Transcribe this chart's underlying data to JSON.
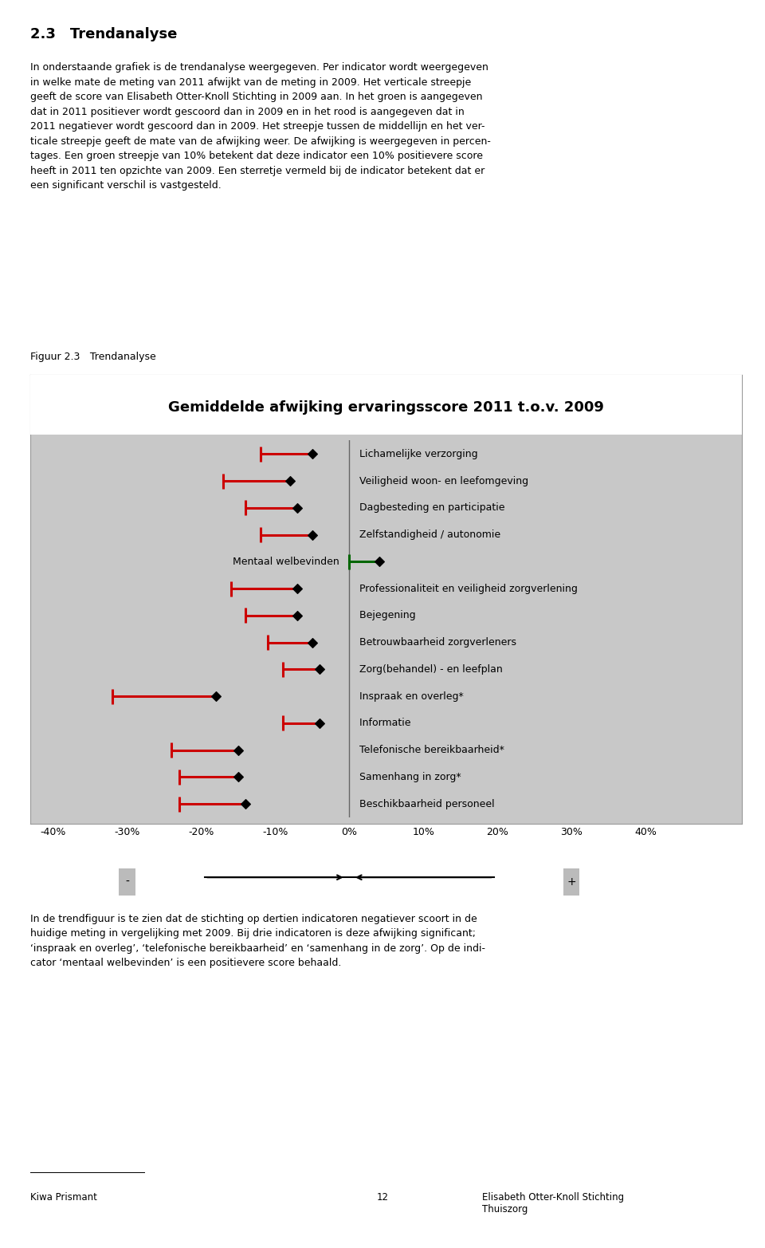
{
  "title": "Gemiddelde afwijking ervaringsscore 2011 t.o.v. 2009",
  "indicators": [
    {
      "label": "Lichamelijke verzorging",
      "value": -0.05,
      "ci_low": -0.12,
      "color": "red",
      "label_side": "right"
    },
    {
      "label": "Veiligheid woon- en leefomgeving",
      "value": -0.08,
      "ci_low": -0.17,
      "color": "red",
      "label_side": "right"
    },
    {
      "label": "Dagbesteding en participatie",
      "value": -0.07,
      "ci_low": -0.14,
      "color": "red",
      "label_side": "right"
    },
    {
      "label": "Zelfstandigheid / autonomie",
      "value": -0.05,
      "ci_low": -0.12,
      "color": "red",
      "label_side": "right"
    },
    {
      "label": "Mentaal welbevinden",
      "value": 0.04,
      "ci_low": 0.0,
      "color": "green",
      "label_side": "left"
    },
    {
      "label": "Professionaliteit en veiligheid zorgverlening",
      "value": -0.07,
      "ci_low": -0.16,
      "color": "red",
      "label_side": "right"
    },
    {
      "label": "Bejegening",
      "value": -0.07,
      "ci_low": -0.14,
      "color": "red",
      "label_side": "right"
    },
    {
      "label": "Betrouwbaarheid zorgverleners",
      "value": -0.05,
      "ci_low": -0.11,
      "color": "red",
      "label_side": "right"
    },
    {
      "label": "Zorg(behandel) - en leefplan",
      "value": -0.04,
      "ci_low": -0.09,
      "color": "red",
      "label_side": "right"
    },
    {
      "label": "Inspraak en overleg*",
      "value": -0.18,
      "ci_low": -0.32,
      "color": "red",
      "label_side": "right"
    },
    {
      "label": "Informatie",
      "value": -0.04,
      "ci_low": -0.09,
      "color": "red",
      "label_side": "right"
    },
    {
      "label": "Telefonische bereikbaarheid*",
      "value": -0.15,
      "ci_low": -0.24,
      "color": "red",
      "label_side": "right"
    },
    {
      "label": "Samenhang in zorg*",
      "value": -0.15,
      "ci_low": -0.23,
      "color": "red",
      "label_side": "right"
    },
    {
      "label": "Beschikbaarheid personeel",
      "value": -0.14,
      "ci_low": -0.23,
      "color": "red",
      "label_side": "right"
    }
  ],
  "xlim": [
    -0.42,
    0.52
  ],
  "xticks": [
    -0.4,
    -0.3,
    -0.2,
    -0.1,
    0.0,
    0.1,
    0.2,
    0.3,
    0.4
  ],
  "xticklabels": [
    "-40%",
    "-30%",
    "-20%",
    "-10%",
    "0%",
    "10%",
    "20%",
    "30%",
    "40%"
  ],
  "bg_color": "#c8c8c8",
  "red_color": "#cc0000",
  "green_color": "#006600",
  "title_fontsize": 14,
  "label_fontsize": 9,
  "paragraph1": "In onderstaande grafiek is de trendanalyse weergegeven. Per indicator wordt weergegeven\nin welke mate de meting van 2011 afwijkt van de meting in 2009. Het verticale streepje\ngeeft de score van Elisabeth Otter-Knoll Stichting in 2009 aan. In het groen is aangegeven\ndat in 2011 positiever wordt gescoord dan in 2009 en in het rood is aangegeven dat in\n2011 negatiever wordt gescoord dan in 2009. Het streepje tussen de middellijn en het ver-\nticale streepje geeft de mate van de afwijking weer. De afwijking is weergegeven in percen-\ntages. Een groen streepje van 10% betekent dat deze indicator een 10% positievere score\nheeft in 2011 ten opzichte van 2009. Een sterretje vermeld bij de indicator betekent dat er\neen significant verschil is vastgesteld.",
  "figuur_label": "Figuur 2.3 Trendanalyse",
  "section_title": "2.3 Trendanalyse",
  "paragraph2": "In de trendfiguur is te zien dat de stichting op dertien indicatoren negatiever scoort in de\nhuidige meting in vergelijking met 2009. Bij drie indicatoren is deze afwijking significant;\n‘inspraak en overleg’, ‘telefonische bereikbaarheid’ en ‘samenhang in de zorg’. Op de indi-\ncator ‘mentaal welbevinden’ is een positievere score behaald.",
  "footer_left": "Kiwa Prismant",
  "footer_center": "12",
  "footer_right": "Elisabeth Otter-Knoll Stichting\nThuiszorg"
}
